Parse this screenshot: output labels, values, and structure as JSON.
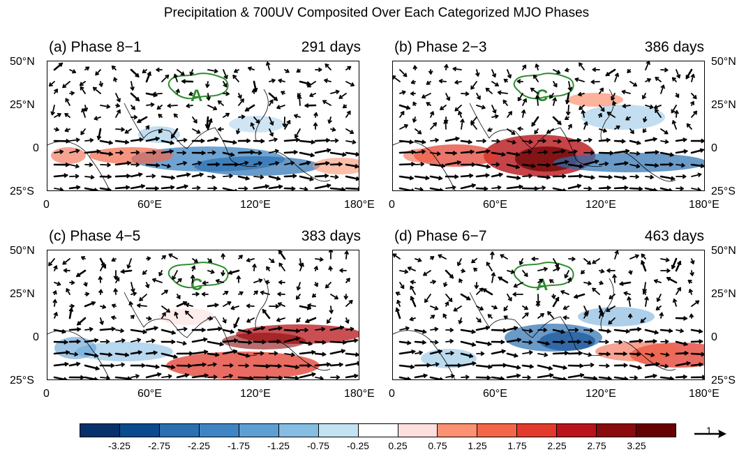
{
  "title": "Precipitation & 700UV Composited Over Each Categorized MJO Phases",
  "panels": [
    {
      "label": "(a) Phase 8−1",
      "days": "291 days",
      "tp_letter": "A"
    },
    {
      "label": "(b) Phase 2−3",
      "days": "386 days",
      "tp_letter": "C"
    },
    {
      "label": "(c) Phase 4−5",
      "days": "383 days",
      "tp_letter": "C"
    },
    {
      "label": "(d) Phase 6−7",
      "days": "463 days",
      "tp_letter": "A"
    }
  ],
  "lat_ticks": [
    "50°N",
    "25°N",
    "0",
    "25°S"
  ],
  "lon_ticks": [
    "0",
    "60°E",
    "120°E",
    "180°E"
  ],
  "colorbar": {
    "labels": [
      "-3.25",
      "-2.75",
      "-2.25",
      "-1.75",
      "-1.25",
      "-0.75",
      "-0.25",
      "0.25",
      "0.75",
      "1.25",
      "1.75",
      "2.25",
      "2.75",
      "3.25"
    ],
    "colors": [
      "#08306b",
      "#0b4a8f",
      "#2a6fb0",
      "#3f85c3",
      "#5e9fd3",
      "#86bde2",
      "#c4e3f2",
      "#ffffff",
      "#fde0dd",
      "#fc9272",
      "#f4664a",
      "#e23a2c",
      "#b8141a",
      "#8a0b0e",
      "#670000"
    ]
  },
  "reference_vector": {
    "label": "1"
  },
  "colors": {
    "tp_contour": "#2e8b2e",
    "vector": "#000000"
  }
}
